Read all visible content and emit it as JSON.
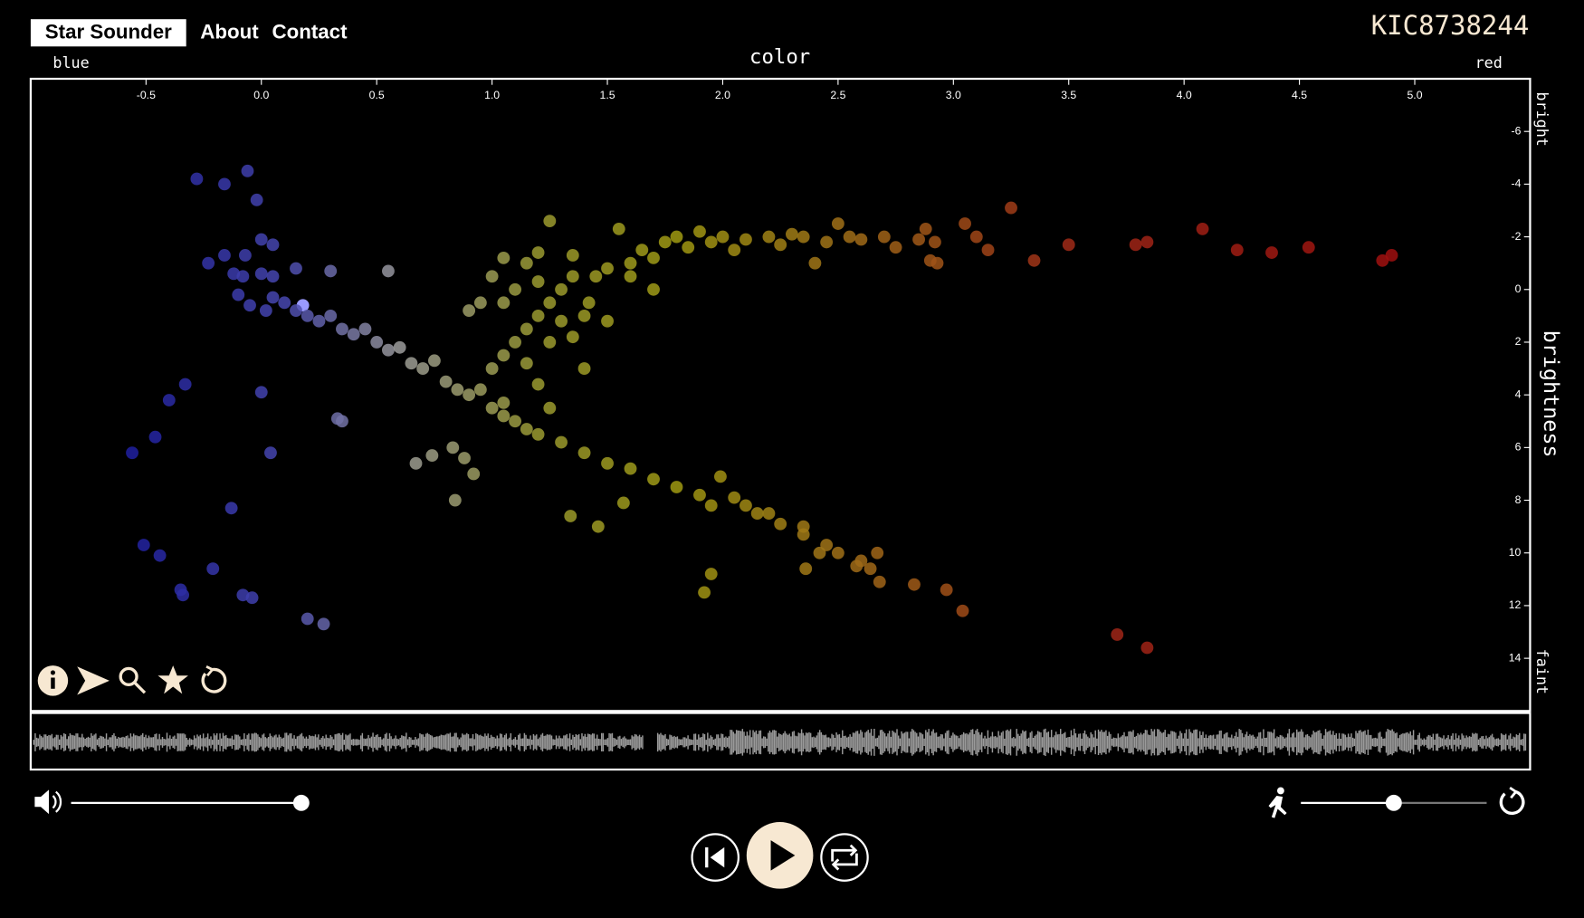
{
  "nav": {
    "brand": "Star Sounder",
    "links": [
      "About",
      "Contact"
    ]
  },
  "star_id": "KIC8738244",
  "chart_data": {
    "type": "scatter",
    "x_label": "color",
    "y_label": "brightness",
    "x_end_labels": [
      "blue",
      "red"
    ],
    "y_end_labels": [
      "bright",
      "faint"
    ],
    "xlim": [
      -1.0,
      5.5
    ],
    "ylim": [
      16,
      -8
    ],
    "xticks": [
      {
        "value": -0.5,
        "label": "-0.5"
      },
      {
        "value": 0,
        "label": "0.0"
      },
      {
        "value": 0.5,
        "label": "0.5"
      },
      {
        "value": 1,
        "label": "1.0"
      },
      {
        "value": 1.5,
        "label": "1.5"
      },
      {
        "value": 2,
        "label": "2.0"
      },
      {
        "value": 2.5,
        "label": "2.5"
      },
      {
        "value": 3,
        "label": "3.0"
      },
      {
        "value": 3.5,
        "label": "3.5"
      },
      {
        "value": 4,
        "label": "4.0"
      },
      {
        "value": 4.5,
        "label": "4.5"
      },
      {
        "value": 5,
        "label": "5.0"
      }
    ],
    "yticks": [
      -6,
      -4,
      -2,
      0,
      2,
      4,
      6,
      8,
      10,
      12,
      14
    ],
    "color_stops": [
      {
        "value": -0.6,
        "color": "#1e1ea0"
      },
      {
        "value": 0.1,
        "color": "#4848b0"
      },
      {
        "value": 0.6,
        "color": "#9c9c9c"
      },
      {
        "value": 1.2,
        "color": "#9a9a30"
      },
      {
        "value": 1.8,
        "color": "#a09a12"
      },
      {
        "value": 2.6,
        "color": "#a06a18"
      },
      {
        "value": 3.5,
        "color": "#a02a18"
      },
      {
        "value": 4.9,
        "color": "#a00f0f"
      }
    ],
    "highlight": {
      "index": 14,
      "color": "#9a9aff"
    },
    "x": [
      -0.28,
      -0.16,
      -0.06,
      -0.02,
      0.0,
      0.05,
      -0.07,
      -0.23,
      -0.16,
      -0.12,
      -0.08,
      0.0,
      0.05,
      0.15,
      0.18,
      0.3,
      0.55,
      -0.1,
      -0.05,
      0.02,
      -0.33,
      -0.4,
      -0.46,
      -0.56,
      0.0,
      0.04,
      -0.13,
      -0.51,
      -0.44,
      -0.21,
      -0.35,
      -0.34,
      -0.08,
      -0.04,
      0.2,
      0.27,
      0.05,
      0.1,
      0.15,
      0.2,
      0.25,
      0.3,
      0.35,
      0.4,
      0.45,
      0.5,
      0.55,
      0.6,
      0.65,
      0.7,
      0.75,
      0.8,
      0.85,
      0.9,
      0.95,
      1.0,
      1.05,
      1.1,
      1.15,
      1.2,
      1.3,
      1.4,
      1.5,
      1.6,
      1.7,
      1.8,
      1.9,
      1.95,
      2.05,
      2.15,
      2.25,
      2.35,
      2.45,
      2.5,
      2.6,
      2.67,
      2.68,
      2.83,
      2.97,
      3.04,
      3.71,
      3.84,
      0.33,
      0.35,
      0.67,
      0.74,
      0.83,
      0.88,
      0.92,
      0.84,
      1.34,
      1.46,
      1.57,
      1.95,
      1.92,
      1.99,
      2.1,
      2.2,
      2.35,
      2.42,
      2.36,
      2.58,
      2.64,
      1.0,
      1.05,
      1.1,
      1.15,
      1.2,
      1.25,
      1.3,
      1.35,
      1.2,
      1.1,
      1.05,
      1.15,
      1.25,
      1.3,
      1.35,
      1.4,
      0.9,
      0.95,
      1.0,
      1.15,
      1.2,
      1.25,
      1.05,
      1.42,
      1.5,
      1.4,
      1.2,
      1.25,
      1.05,
      1.5,
      1.6,
      1.65,
      1.7,
      1.75,
      1.8,
      1.85,
      1.9,
      1.95,
      2.0,
      2.05,
      2.1,
      2.2,
      2.25,
      2.3,
      2.35,
      2.45,
      2.55,
      2.6,
      2.7,
      2.75,
      2.85,
      2.88,
      2.92,
      2.9,
      2.93,
      3.05,
      3.1,
      3.15,
      3.25,
      3.35,
      3.5,
      3.79,
      3.84,
      4.08,
      4.23,
      4.38,
      4.54,
      4.86,
      4.9,
      2.4,
      2.5,
      1.55,
      1.7,
      1.6,
      1.45,
      1.35
    ],
    "values": [
      -4.2,
      -4.0,
      -4.5,
      -3.4,
      -1.9,
      -1.7,
      -1.3,
      -1.0,
      -1.3,
      -0.6,
      -0.5,
      -0.6,
      -0.5,
      -0.8,
      0.6,
      -0.7,
      -0.7,
      0.2,
      0.6,
      0.8,
      3.6,
      4.2,
      5.6,
      6.2,
      3.9,
      6.2,
      8.3,
      9.7,
      10.1,
      10.6,
      11.4,
      11.6,
      11.6,
      11.7,
      12.5,
      12.7,
      0.3,
      0.5,
      0.8,
      1.0,
      1.2,
      1.0,
      1.5,
      1.7,
      1.5,
      2.0,
      2.3,
      2.2,
      2.8,
      3.0,
      2.7,
      3.5,
      3.8,
      4.0,
      3.8,
      4.5,
      4.8,
      5.0,
      5.3,
      5.5,
      5.8,
      6.2,
      6.6,
      6.8,
      7.2,
      7.5,
      7.8,
      8.2,
      7.9,
      8.5,
      8.9,
      9.3,
      9.7,
      10.0,
      10.3,
      10.0,
      11.1,
      11.2,
      11.4,
      12.2,
      13.1,
      13.6,
      4.9,
      5.0,
      6.6,
      6.3,
      6.0,
      6.4,
      7.0,
      8.0,
      8.6,
      9.0,
      8.1,
      10.8,
      11.5,
      7.1,
      8.2,
      8.5,
      9.0,
      10.0,
      10.6,
      10.5,
      10.6,
      3.0,
      2.5,
      2.0,
      1.5,
      1.0,
      0.5,
      0.0,
      -0.5,
      -0.3,
      0.0,
      0.5,
      2.8,
      2.0,
      1.2,
      1.8,
      1.0,
      0.8,
      0.5,
      -0.5,
      -1.0,
      -1.4,
      -2.6,
      -1.2,
      0.5,
      1.2,
      3.0,
      3.6,
      4.5,
      4.3,
      -0.8,
      -1.0,
      -1.5,
      -1.2,
      -1.8,
      -2.0,
      -1.6,
      -2.2,
      -1.8,
      -2.0,
      -1.5,
      -1.9,
      -2.0,
      -1.7,
      -2.1,
      -2.0,
      -1.8,
      -2.0,
      -1.9,
      -2.0,
      -1.6,
      -1.9,
      -2.3,
      -1.8,
      -1.1,
      -1.0,
      -2.5,
      -2.0,
      -1.5,
      -3.1,
      -1.1,
      -1.7,
      -1.7,
      -1.8,
      -2.3,
      -1.5,
      -1.4,
      -1.6,
      -1.1,
      -1.3,
      -1.0,
      -2.5,
      -2.3,
      0.0,
      -0.5,
      -0.5,
      -1.3
    ]
  }
}
